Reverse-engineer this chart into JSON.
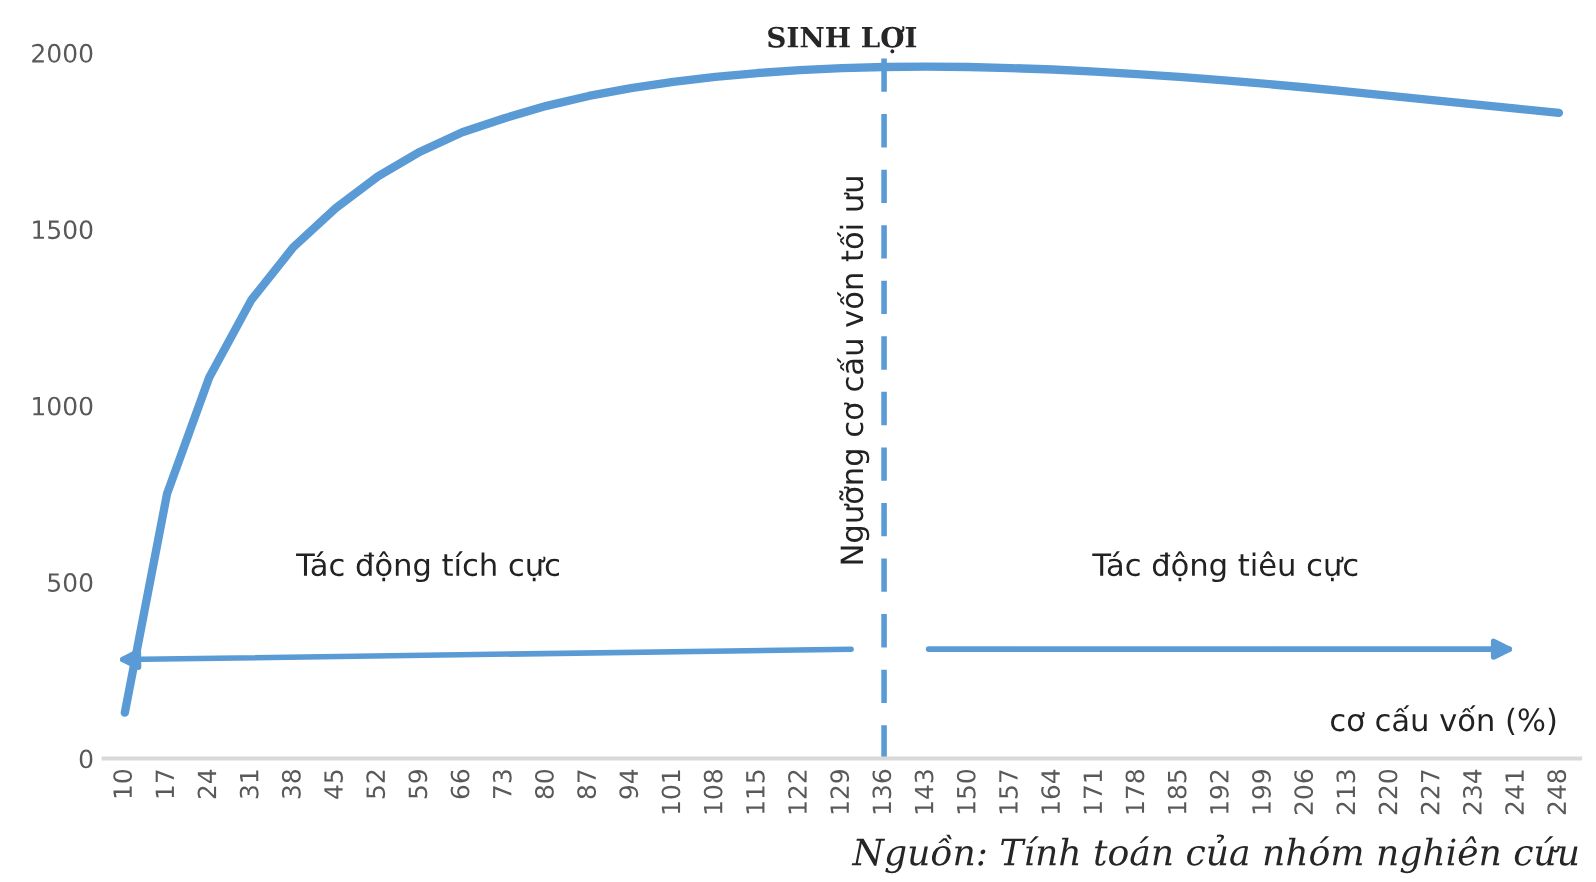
{
  "chart_data": {
    "type": "line",
    "title": "SINH LỢI",
    "xlabel": "cơ cấu vốn (%)",
    "categories": [
      "10",
      "17",
      "24",
      "31",
      "38",
      "45",
      "52",
      "59",
      "66",
      "73",
      "80",
      "87",
      "94",
      "101",
      "108",
      "115",
      "122",
      "129",
      "136",
      "143",
      "150",
      "157",
      "164",
      "171",
      "178",
      "185",
      "192",
      "199",
      "206",
      "213",
      "220",
      "227",
      "234",
      "241",
      "248"
    ],
    "series": [
      {
        "color": "#5b9bd5",
        "values": [
          130,
          750,
          1080,
          1300,
          1450,
          1560,
          1650,
          1720,
          1775,
          1815,
          1850,
          1878,
          1900,
          1918,
          1932,
          1943,
          1951,
          1957,
          1960,
          1961,
          1960,
          1957,
          1953,
          1947,
          1940,
          1932,
          1923,
          1913,
          1902,
          1890,
          1878,
          1866,
          1854,
          1842,
          1830
        ]
      }
    ],
    "ylim": [
      0,
      2000
    ],
    "yticks": [
      0,
      500,
      1000,
      1500,
      2000
    ],
    "grid": false,
    "legend": false,
    "marker": "none",
    "line_style": "solid",
    "ref_lines": [
      {
        "axis": "x",
        "value": "136",
        "label": "Ngưỡng cơ cấu vốn tối ưu",
        "color": "#5b9bd5",
        "line_style": "dashed"
      }
    ],
    "annotations": [
      "Tác động tích cực",
      "Tác động tiêu cực",
      "Nguồn: Tính toán của nhóm nghiên cứu"
    ]
  }
}
